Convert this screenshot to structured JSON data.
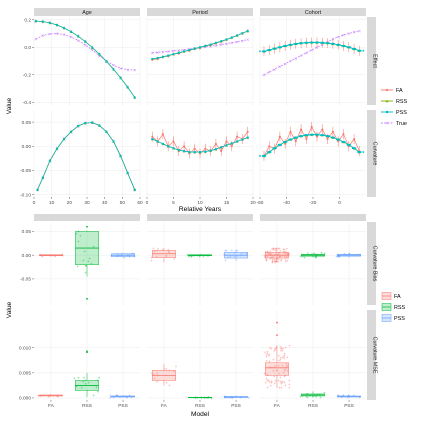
{
  "top": {
    "facet_cols": [
      "Age",
      "Period",
      "Cohort"
    ],
    "facet_rows": [
      "Effect",
      "Curvature"
    ],
    "xlabel": "Relative Years",
    "ylabel": "Value",
    "col_xlim": [
      [
        0,
        60
      ],
      [
        0,
        20
      ],
      [
        -60,
        20
      ]
    ],
    "col_xticks": [
      [
        0,
        10,
        20,
        30,
        40,
        50,
        60
      ],
      [
        0,
        5,
        10,
        15,
        20
      ],
      [
        -60,
        -40,
        -20,
        0
      ]
    ],
    "row_ylim": [
      [
        -0.42,
        0.22
      ],
      [
        -0.105,
        0.075
      ]
    ],
    "row_yticks": [
      [
        -0.4,
        -0.2,
        0.0,
        0.2
      ],
      [
        -0.1,
        -0.05,
        0.0,
        0.05
      ]
    ],
    "row_yticklabels": [
      [
        "-0.4",
        "-0.2",
        "0.0",
        "0.2"
      ],
      [
        "-0.10",
        "-0.05",
        "0.00",
        "0.05"
      ]
    ],
    "legend": [
      "FA",
      "RSS",
      "PSS",
      "True"
    ],
    "colors": {
      "FA": "#F8766D",
      "RSS": "#7CAE00",
      "PSS": "#00BFC4",
      "True": "#C77CFF"
    }
  },
  "bottom": {
    "facet_cols": [
      "",
      "",
      ""
    ],
    "facet_rows": [
      "Curvature Bias",
      "Curvature MSE"
    ],
    "categories": [
      "FA",
      "RSS",
      "PSS"
    ],
    "xlabel": "Model",
    "ylabel": "Value",
    "row_ylim": [
      [
        -0.105,
        0.07
      ],
      [
        -0.0004,
        0.0175
      ]
    ],
    "row_yticks": [
      [
        -0.05,
        0.0,
        0.05
      ],
      [
        0.0,
        0.005,
        0.01
      ]
    ],
    "row_yticklabels": [
      [
        "-0.05",
        "0.00",
        "0.05"
      ],
      [
        "0.000",
        "0.005",
        "0.010"
      ]
    ],
    "legend": [
      "FA",
      "RSS",
      "PSS"
    ],
    "colors": {
      "FA": "#F8766D",
      "RSS": "#00BA38",
      "PSS": "#619CFF"
    }
  },
  "chart_data": [
    {
      "type": "line",
      "title": "",
      "facet": "Age / Effect",
      "x": [
        1,
        5,
        9,
        13,
        17,
        21,
        25,
        29,
        33,
        37,
        41,
        45,
        49,
        53,
        57
      ],
      "series": [
        {
          "name": "FA",
          "values": [
            0.19,
            0.187,
            0.178,
            0.162,
            0.14,
            0.113,
            0.08,
            0.042,
            -0.002,
            -0.05,
            -0.103,
            -0.16,
            -0.222,
            -0.29,
            -0.365
          ]
        },
        {
          "name": "RSS",
          "values": [
            0.19,
            0.187,
            0.178,
            0.162,
            0.14,
            0.113,
            0.08,
            0.042,
            -0.002,
            -0.05,
            -0.103,
            -0.16,
            -0.222,
            -0.29,
            -0.365
          ]
        },
        {
          "name": "PSS",
          "values": [
            0.19,
            0.187,
            0.178,
            0.162,
            0.14,
            0.113,
            0.08,
            0.042,
            -0.002,
            -0.05,
            -0.103,
            -0.16,
            -0.222,
            -0.29,
            -0.365
          ]
        },
        {
          "name": "True",
          "values": [
            0.06,
            0.085,
            0.098,
            0.1,
            0.092,
            0.075,
            0.05,
            0.018,
            -0.02,
            -0.062,
            -0.1,
            -0.13,
            -0.152,
            -0.163,
            -0.165
          ]
        }
      ]
    },
    {
      "type": "line",
      "title": "",
      "facet": "Period / Effect",
      "x": [
        1,
        2,
        3,
        4,
        5,
        6,
        7,
        8,
        9,
        10,
        11,
        12,
        13,
        14,
        15,
        16,
        17,
        18,
        19
      ],
      "series": [
        {
          "name": "FA",
          "values": [
            -0.09,
            -0.085,
            -0.07,
            -0.065,
            -0.05,
            -0.045,
            -0.03,
            -0.025,
            -0.01,
            -0.005,
            0.01,
            0.015,
            0.03,
            0.04,
            0.055,
            0.07,
            0.085,
            0.1,
            0.12
          ]
        },
        {
          "name": "RSS",
          "values": [
            -0.085,
            -0.078,
            -0.07,
            -0.06,
            -0.05,
            -0.04,
            -0.03,
            -0.02,
            -0.01,
            0.0,
            0.01,
            0.02,
            0.032,
            0.044,
            0.057,
            0.071,
            0.086,
            0.102,
            0.118
          ]
        },
        {
          "name": "PSS",
          "values": [
            -0.085,
            -0.078,
            -0.07,
            -0.06,
            -0.05,
            -0.04,
            -0.03,
            -0.02,
            -0.01,
            0.0,
            0.01,
            0.02,
            0.032,
            0.044,
            0.057,
            0.071,
            0.086,
            0.102,
            0.118
          ]
        },
        {
          "name": "True",
          "values": [
            -0.04,
            -0.037,
            -0.034,
            -0.03,
            -0.026,
            -0.022,
            -0.018,
            -0.013,
            -0.008,
            -0.003,
            0.002,
            0.007,
            0.013,
            0.019,
            0.026,
            0.033,
            0.04,
            0.048,
            0.056
          ]
        }
      ]
    },
    {
      "type": "line",
      "title": "",
      "facet": "Cohort / Effect",
      "x": [
        -57,
        -53,
        -49,
        -45,
        -41,
        -37,
        -33,
        -29,
        -25,
        -21,
        -17,
        -13,
        -9,
        -5,
        -1,
        3,
        7,
        11,
        15
      ],
      "series": [
        {
          "name": "FA",
          "values": [
            -0.03,
            -0.02,
            -0.01,
            0.0,
            0.01,
            0.018,
            0.025,
            0.03,
            0.033,
            0.035,
            0.035,
            0.033,
            0.03,
            0.025,
            0.018,
            0.01,
            0.0,
            -0.012,
            -0.025
          ]
        },
        {
          "name": "RSS",
          "values": [
            -0.03,
            -0.02,
            -0.01,
            0.0,
            0.01,
            0.018,
            0.025,
            0.03,
            0.033,
            0.035,
            0.035,
            0.033,
            0.03,
            0.025,
            0.018,
            0.01,
            0.0,
            -0.012,
            -0.025
          ]
        },
        {
          "name": "PSS",
          "values": [
            -0.03,
            -0.02,
            -0.01,
            0.0,
            0.01,
            0.018,
            0.025,
            0.03,
            0.033,
            0.035,
            0.035,
            0.033,
            0.03,
            0.025,
            0.018,
            0.01,
            0.0,
            -0.012,
            -0.025
          ]
        },
        {
          "name": "True",
          "values": [
            -0.2,
            -0.18,
            -0.16,
            -0.14,
            -0.12,
            -0.1,
            -0.08,
            -0.06,
            -0.04,
            -0.02,
            0.0,
            0.02,
            0.04,
            0.06,
            0.075,
            0.09,
            0.1,
            0.11,
            0.12
          ]
        }
      ]
    },
    {
      "type": "line",
      "title": "",
      "facet": "Age / Curvature",
      "x": [
        2,
        5,
        9,
        13,
        17,
        21,
        25,
        29,
        33,
        37,
        41,
        45,
        49,
        53,
        57
      ],
      "series": [
        {
          "name": "FA",
          "values": [
            -0.09,
            -0.065,
            -0.03,
            -0.005,
            0.015,
            0.03,
            0.042,
            0.048,
            0.049,
            0.043,
            0.03,
            0.01,
            -0.02,
            -0.055,
            -0.09
          ]
        },
        {
          "name": "RSS",
          "values": [
            -0.09,
            -0.065,
            -0.03,
            -0.005,
            0.015,
            0.03,
            0.042,
            0.048,
            0.049,
            0.043,
            0.03,
            0.01,
            -0.02,
            -0.055,
            -0.09
          ]
        },
        {
          "name": "PSS",
          "values": [
            -0.09,
            -0.065,
            -0.03,
            -0.005,
            0.015,
            0.03,
            0.042,
            0.048,
            0.049,
            0.043,
            0.03,
            0.01,
            -0.02,
            -0.055,
            -0.09
          ]
        },
        {
          "name": "True",
          "values": [
            -0.09,
            -0.065,
            -0.03,
            -0.005,
            0.015,
            0.03,
            0.042,
            0.048,
            0.049,
            0.043,
            0.03,
            0.01,
            -0.02,
            -0.055,
            -0.09
          ]
        }
      ]
    },
    {
      "type": "line",
      "title": "",
      "facet": "Period / Curvature",
      "x": [
        1,
        2,
        3,
        4,
        5,
        6,
        7,
        8,
        9,
        10,
        11,
        12,
        13,
        14,
        15,
        16,
        17,
        18,
        19
      ],
      "series": [
        {
          "name": "FA",
          "values": [
            0.02,
            0.01,
            0.025,
            0.0,
            0.01,
            -0.01,
            0.0,
            -0.015,
            -0.005,
            -0.015,
            -0.005,
            -0.01,
            0.005,
            -0.01,
            0.01,
            0.0,
            0.02,
            0.015,
            0.03
          ]
        },
        {
          "name": "RSS",
          "values": [
            0.015,
            0.01,
            0.005,
            0.0,
            -0.004,
            -0.008,
            -0.01,
            -0.012,
            -0.012,
            -0.012,
            -0.011,
            -0.009,
            -0.006,
            -0.002,
            0.002,
            0.006,
            0.01,
            0.014,
            0.018
          ]
        },
        {
          "name": "PSS",
          "values": [
            0.015,
            0.01,
            0.005,
            0.0,
            -0.004,
            -0.008,
            -0.01,
            -0.012,
            -0.012,
            -0.012,
            -0.011,
            -0.009,
            -0.006,
            -0.002,
            0.002,
            0.006,
            0.01,
            0.014,
            0.018
          ]
        },
        {
          "name": "True",
          "values": [
            0.015,
            0.01,
            0.005,
            0.0,
            -0.004,
            -0.008,
            -0.01,
            -0.012,
            -0.012,
            -0.012,
            -0.011,
            -0.009,
            -0.006,
            -0.002,
            0.002,
            0.006,
            0.01,
            0.014,
            0.018
          ]
        }
      ]
    },
    {
      "type": "line",
      "title": "",
      "facet": "Cohort / Curvature",
      "x": [
        -57,
        -53,
        -49,
        -45,
        -41,
        -37,
        -33,
        -29,
        -25,
        -21,
        -17,
        -13,
        -9,
        -5,
        -1,
        3,
        7,
        11,
        15
      ],
      "series": [
        {
          "name": "FA",
          "values": [
            -0.02,
            0.0,
            -0.005,
            0.02,
            0.005,
            0.03,
            0.01,
            0.035,
            0.015,
            0.04,
            0.02,
            0.035,
            0.015,
            0.03,
            0.01,
            0.025,
            0.0,
            0.015,
            -0.01
          ]
        },
        {
          "name": "RSS",
          "values": [
            -0.02,
            -0.012,
            -0.004,
            0.003,
            0.009,
            0.014,
            0.018,
            0.021,
            0.023,
            0.024,
            0.024,
            0.023,
            0.021,
            0.018,
            0.014,
            0.009,
            0.003,
            -0.004,
            -0.012
          ]
        },
        {
          "name": "PSS",
          "values": [
            -0.02,
            -0.012,
            -0.004,
            0.003,
            0.009,
            0.014,
            0.018,
            0.021,
            0.023,
            0.024,
            0.024,
            0.023,
            0.021,
            0.018,
            0.014,
            0.009,
            0.003,
            -0.004,
            -0.012
          ]
        },
        {
          "name": "True",
          "values": [
            -0.02,
            -0.012,
            -0.004,
            0.003,
            0.009,
            0.014,
            0.018,
            0.021,
            0.023,
            0.024,
            0.024,
            0.023,
            0.021,
            0.018,
            0.014,
            0.009,
            0.003,
            -0.004,
            -0.012
          ]
        }
      ]
    },
    {
      "type": "box",
      "title": "",
      "facet": "Col 1 / Curvature Bias",
      "categories": [
        "FA",
        "RSS",
        "PSS"
      ],
      "boxes": [
        {
          "name": "FA",
          "q1": -0.001,
          "median": 0.0,
          "q3": 0.001,
          "whisker_low": -0.002,
          "whisker_high": 0.002,
          "outliers": []
        },
        {
          "name": "RSS",
          "q1": -0.02,
          "median": 0.015,
          "q3": 0.05,
          "whisker_low": -0.045,
          "whisker_high": 0.052,
          "outliers": [
            -0.092,
            0.06
          ]
        },
        {
          "name": "PSS",
          "q1": -0.003,
          "median": 0.0,
          "q3": 0.003,
          "whisker_low": -0.005,
          "whisker_high": 0.005,
          "outliers": []
        }
      ]
    },
    {
      "type": "box",
      "title": "",
      "facet": "Col 2 / Curvature Bias",
      "categories": [
        "FA",
        "RSS",
        "PSS"
      ],
      "boxes": [
        {
          "name": "FA",
          "q1": -0.005,
          "median": 0.003,
          "q3": 0.01,
          "whisker_low": -0.015,
          "whisker_high": 0.015,
          "outliers": []
        },
        {
          "name": "RSS",
          "q1": -0.001,
          "median": 0.0,
          "q3": 0.001,
          "whisker_low": -0.002,
          "whisker_high": 0.002,
          "outliers": []
        },
        {
          "name": "PSS",
          "q1": -0.006,
          "median": 0.0,
          "q3": 0.006,
          "whisker_low": -0.012,
          "whisker_high": 0.012,
          "outliers": []
        }
      ]
    },
    {
      "type": "box",
      "title": "",
      "facet": "Col 3 / Curvature Bias",
      "categories": [
        "FA",
        "RSS",
        "PSS"
      ],
      "boxes": [
        {
          "name": "FA",
          "q1": -0.006,
          "median": 0.0,
          "q3": 0.006,
          "whisker_low": -0.015,
          "whisker_high": 0.015,
          "outliers": []
        },
        {
          "name": "RSS",
          "q1": -0.002,
          "median": 0.0,
          "q3": 0.002,
          "whisker_low": -0.005,
          "whisker_high": 0.005,
          "outliers": []
        },
        {
          "name": "PSS",
          "q1": -0.002,
          "median": 0.0,
          "q3": 0.002,
          "whisker_low": -0.005,
          "whisker_high": 0.005,
          "outliers": []
        }
      ]
    },
    {
      "type": "box",
      "title": "",
      "facet": "Col 1 / Curvature MSE",
      "categories": [
        "FA",
        "RSS",
        "PSS"
      ],
      "boxes": [
        {
          "name": "FA",
          "q1": 0.0004,
          "median": 0.0005,
          "q3": 0.0006,
          "whisker_low": 0.0003,
          "whisker_high": 0.0007,
          "outliers": []
        },
        {
          "name": "RSS",
          "q1": 0.0015,
          "median": 0.0025,
          "q3": 0.0035,
          "whisker_low": 0.0002,
          "whisker_high": 0.005,
          "outliers": [
            0.0091,
            0.0093
          ]
        },
        {
          "name": "PSS",
          "q1": 0.0002,
          "median": 0.0003,
          "q3": 0.0004,
          "whisker_low": 0.0001,
          "whisker_high": 0.0006,
          "outliers": []
        }
      ]
    },
    {
      "type": "box",
      "title": "",
      "facet": "Col 2 / Curvature MSE",
      "categories": [
        "FA",
        "RSS",
        "PSS"
      ],
      "boxes": [
        {
          "name": "FA",
          "q1": 0.0035,
          "median": 0.0045,
          "q3": 0.0055,
          "whisker_low": 0.0025,
          "whisker_high": 0.0068,
          "outliers": []
        },
        {
          "name": "RSS",
          "q1": 5e-05,
          "median": 0.0001,
          "q3": 0.00015,
          "whisker_low": 0.0,
          "whisker_high": 0.0002,
          "outliers": []
        },
        {
          "name": "PSS",
          "q1": 0.0001,
          "median": 0.0002,
          "q3": 0.0003,
          "whisker_low": 0.0,
          "whisker_high": 0.0005,
          "outliers": []
        }
      ]
    },
    {
      "type": "box",
      "title": "",
      "facet": "Col 3 / Curvature MSE",
      "categories": [
        "FA",
        "RSS",
        "PSS"
      ],
      "boxes": [
        {
          "name": "FA",
          "q1": 0.0045,
          "median": 0.006,
          "q3": 0.007,
          "whisker_low": 0.002,
          "whisker_high": 0.0105,
          "outliers": [
            0.015,
            0.0125
          ]
        },
        {
          "name": "RSS",
          "q1": 0.0004,
          "median": 0.0006,
          "q3": 0.0008,
          "whisker_low": 0.0001,
          "whisker_high": 0.0013,
          "outliers": []
        },
        {
          "name": "PSS",
          "q1": 0.0002,
          "median": 0.0003,
          "q3": 0.0004,
          "whisker_low": 0.0001,
          "whisker_high": 0.0006,
          "outliers": []
        }
      ]
    }
  ]
}
